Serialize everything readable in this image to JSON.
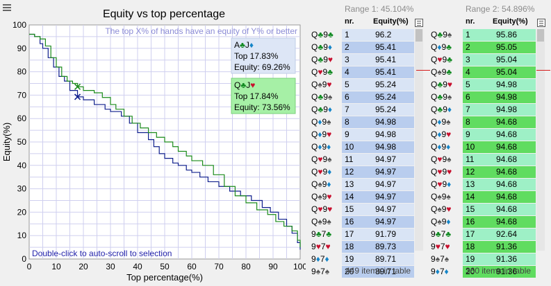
{
  "chart": {
    "title": "Equity vs top percentage",
    "subtitle": "The top X% of hands have an equity of Y% or better",
    "xlabel": "Top percentage(%)",
    "ylabel": "Equity(%)",
    "hint": "Double-click to auto-scroll to selection",
    "tooltip1": {
      "hand_rank1": "A",
      "hand_suit1": "♣",
      "hand_rank2": "J",
      "hand_suit2": "♦",
      "top": "Top 17.83%",
      "equity": "Equity: 69.26%",
      "bg": "#dde6f6"
    },
    "tooltip2": {
      "hand_rank1": "Q",
      "hand_suit1": "♣",
      "hand_rank2": "J",
      "hand_suit2": "♥",
      "top": "Top 17.84%",
      "equity": "Equity: 73.56%",
      "bg": "#a6f0a6"
    }
  },
  "chart_data": {
    "type": "line",
    "title": "Equity vs top percentage",
    "xlabel": "Top percentage(%)",
    "ylabel": "Equity(%)",
    "xlim": [
      0,
      100
    ],
    "ylim": [
      0,
      100
    ],
    "xticks": [
      0,
      10,
      20,
      30,
      40,
      50,
      60,
      70,
      80,
      90,
      100
    ],
    "yticks": [
      0,
      10,
      20,
      30,
      40,
      50,
      60,
      70,
      80,
      90,
      100
    ],
    "grid": true,
    "series": [
      {
        "color": "#0e1e8c",
        "x": [
          0,
          2,
          4,
          5,
          7,
          9,
          11,
          13,
          15,
          17.83,
          20,
          24,
          28,
          30,
          34,
          37,
          40,
          44,
          46,
          48,
          50,
          53,
          55,
          58,
          60,
          63,
          66,
          70,
          74,
          78,
          82,
          86,
          89,
          92,
          95,
          97,
          99,
          100
        ],
        "y": [
          96,
          95,
          92,
          90,
          86,
          82,
          78,
          76,
          72,
          69.26,
          68,
          66,
          64,
          63,
          61,
          58,
          54,
          51,
          48,
          45,
          43,
          41,
          40,
          38,
          37,
          35,
          33,
          31,
          29,
          27,
          25,
          22,
          20,
          17,
          14,
          11,
          7,
          4
        ]
      },
      {
        "color": "#1a8a1a",
        "x": [
          0,
          2,
          4,
          6,
          8,
          10,
          12,
          14,
          16,
          17.84,
          20,
          24,
          27,
          30,
          32,
          35,
          38,
          41,
          44,
          47,
          50,
          53,
          55,
          58,
          60,
          64,
          68,
          72,
          76,
          80,
          84,
          88,
          91,
          94,
          97,
          99,
          100
        ],
        "y": [
          96,
          95,
          94,
          91,
          86,
          82,
          78,
          76,
          75,
          73.56,
          72,
          71,
          69,
          66,
          64,
          61,
          58,
          56,
          54,
          52,
          50,
          48,
          46,
          44,
          42,
          40,
          36,
          31,
          27,
          24,
          21,
          19,
          16,
          14,
          12,
          8,
          5
        ]
      }
    ],
    "annotations": [
      {
        "x": 17.83,
        "y": 69.26,
        "label": "Top 17.83% / Equity: 69.26%"
      },
      {
        "x": 17.84,
        "y": 73.56,
        "label": "Top 17.84% / Equity: 73.56%"
      }
    ]
  },
  "range1": {
    "title": "Range 1: 45.104%",
    "col_nr": "nr.",
    "col_eq": "Equity(%)",
    "footer": "449 items in table",
    "even_bg": "#d9e4f5",
    "odd_bg": "#d9e4f5",
    "highlight_bg": "#b9cdee",
    "rows": [
      {
        "r1": "Q",
        "s1": "♣",
        "r2": "9",
        "s2": "♣",
        "nr": "1",
        "eq": "96.2",
        "hl": false
      },
      {
        "r1": "Q",
        "s1": "♣",
        "r2": "9",
        "s2": "♦",
        "nr": "2",
        "eq": "95.41",
        "hl": true
      },
      {
        "r1": "Q",
        "s1": "♣",
        "r2": "9",
        "s2": "♥",
        "nr": "3",
        "eq": "95.41",
        "hl": false
      },
      {
        "r1": "Q",
        "s1": "♥",
        "r2": "9",
        "s2": "♣",
        "nr": "4",
        "eq": "95.41",
        "hl": true
      },
      {
        "r1": "Q",
        "s1": "♠",
        "r2": "9",
        "s2": "♥",
        "nr": "5",
        "eq": "95.24",
        "hl": false
      },
      {
        "r1": "Q",
        "s1": "♣",
        "r2": "9",
        "s2": "♠",
        "nr": "6",
        "eq": "95.24",
        "hl": true
      },
      {
        "r1": "Q",
        "s1": "♣",
        "r2": "9",
        "s2": "♦",
        "nr": "7",
        "eq": "95.24",
        "hl": false
      },
      {
        "r1": "Q",
        "s1": "♦",
        "r2": "9",
        "s2": "♠",
        "nr": "8",
        "eq": "94.98",
        "hl": true
      },
      {
        "r1": "Q",
        "s1": "♦",
        "r2": "9",
        "s2": "♥",
        "nr": "9",
        "eq": "94.98",
        "hl": false
      },
      {
        "r1": "Q",
        "s1": "♦",
        "r2": "9",
        "s2": "♦",
        "nr": "10",
        "eq": "94.98",
        "hl": true
      },
      {
        "r1": "Q",
        "s1": "♥",
        "r2": "9",
        "s2": "♠",
        "nr": "11",
        "eq": "94.97",
        "hl": false
      },
      {
        "r1": "Q",
        "s1": "♥",
        "r2": "9",
        "s2": "♦",
        "nr": "12",
        "eq": "94.97",
        "hl": true
      },
      {
        "r1": "Q",
        "s1": "♠",
        "r2": "9",
        "s2": "♦",
        "nr": "13",
        "eq": "94.97",
        "hl": false
      },
      {
        "r1": "Q",
        "s1": "♠",
        "r2": "9",
        "s2": "♥",
        "nr": "14",
        "eq": "94.97",
        "hl": true
      },
      {
        "r1": "Q",
        "s1": "♥",
        "r2": "9",
        "s2": "♥",
        "nr": "15",
        "eq": "94.97",
        "hl": false
      },
      {
        "r1": "Q",
        "s1": "♠",
        "r2": "9",
        "s2": "♠",
        "nr": "16",
        "eq": "94.97",
        "hl": true
      },
      {
        "r1": "9",
        "s1": "♣",
        "r2": "7",
        "s2": "♣",
        "nr": "17",
        "eq": "91.79",
        "hl": false
      },
      {
        "r1": "9",
        "s1": "♥",
        "r2": "7",
        "s2": "♥",
        "nr": "18",
        "eq": "89.73",
        "hl": true
      },
      {
        "r1": "9",
        "s1": "♦",
        "r2": "7",
        "s2": "♦",
        "nr": "19",
        "eq": "89.71",
        "hl": false
      },
      {
        "r1": "9",
        "s1": "♠",
        "r2": "7",
        "s2": "♠",
        "nr": "20",
        "eq": "89.71",
        "hl": true
      }
    ]
  },
  "range2": {
    "title": "Range 2: 54.896%",
    "col_nr": "nr.",
    "col_eq": "Equity(%)",
    "footer": "360 items in table",
    "even_bg": "#9ef0c6",
    "odd_bg": "#9ef0c6",
    "highlight_bg": "#60dc60",
    "rows": [
      {
        "r1": "Q",
        "s1": "♣",
        "r2": "9",
        "s2": "♠",
        "nr": "1",
        "eq": "95.86",
        "hl": false
      },
      {
        "r1": "Q",
        "s1": "♦",
        "r2": "9",
        "s2": "♣",
        "nr": "2",
        "eq": "95.05",
        "hl": true
      },
      {
        "r1": "Q",
        "s1": "♥",
        "r2": "9",
        "s2": "♣",
        "nr": "3",
        "eq": "95.04",
        "hl": false
      },
      {
        "r1": "Q",
        "s1": "♠",
        "r2": "9",
        "s2": "♣",
        "nr": "4",
        "eq": "95.04",
        "hl": true
      },
      {
        "r1": "Q",
        "s1": "♣",
        "r2": "9",
        "s2": "♥",
        "nr": "5",
        "eq": "94.98",
        "hl": false
      },
      {
        "r1": "Q",
        "s1": "♣",
        "r2": "9",
        "s2": "♠",
        "nr": "6",
        "eq": "94.98",
        "hl": true
      },
      {
        "r1": "Q",
        "s1": "♣",
        "r2": "9",
        "s2": "♦",
        "nr": "7",
        "eq": "94.98",
        "hl": false
      },
      {
        "r1": "Q",
        "s1": "♦",
        "r2": "9",
        "s2": "♠",
        "nr": "8",
        "eq": "94.68",
        "hl": true
      },
      {
        "r1": "Q",
        "s1": "♦",
        "r2": "9",
        "s2": "♥",
        "nr": "9",
        "eq": "94.68",
        "hl": false
      },
      {
        "r1": "Q",
        "s1": "♦",
        "r2": "9",
        "s2": "♦",
        "nr": "10",
        "eq": "94.68",
        "hl": true
      },
      {
        "r1": "Q",
        "s1": "♥",
        "r2": "9",
        "s2": "♠",
        "nr": "11",
        "eq": "94.68",
        "hl": false
      },
      {
        "r1": "Q",
        "s1": "♥",
        "r2": "9",
        "s2": "♥",
        "nr": "12",
        "eq": "94.68",
        "hl": true
      },
      {
        "r1": "Q",
        "s1": "♥",
        "r2": "9",
        "s2": "♦",
        "nr": "13",
        "eq": "94.68",
        "hl": false
      },
      {
        "r1": "Q",
        "s1": "♠",
        "r2": "9",
        "s2": "♠",
        "nr": "14",
        "eq": "94.68",
        "hl": true
      },
      {
        "r1": "Q",
        "s1": "♠",
        "r2": "9",
        "s2": "♥",
        "nr": "15",
        "eq": "94.68",
        "hl": false
      },
      {
        "r1": "Q",
        "s1": "♠",
        "r2": "9",
        "s2": "♦",
        "nr": "16",
        "eq": "94.68",
        "hl": true
      },
      {
        "r1": "9",
        "s1": "♣",
        "r2": "7",
        "s2": "♣",
        "nr": "17",
        "eq": "92.64",
        "hl": false
      },
      {
        "r1": "9",
        "s1": "♥",
        "r2": "7",
        "s2": "♥",
        "nr": "18",
        "eq": "91.36",
        "hl": true
      },
      {
        "r1": "9",
        "s1": "♠",
        "r2": "7",
        "s2": "♠",
        "nr": "19",
        "eq": "91.36",
        "hl": false
      },
      {
        "r1": "9",
        "s1": "♦",
        "r2": "7",
        "s2": "♦",
        "nr": "20",
        "eq": "91.36",
        "hl": true
      }
    ]
  }
}
